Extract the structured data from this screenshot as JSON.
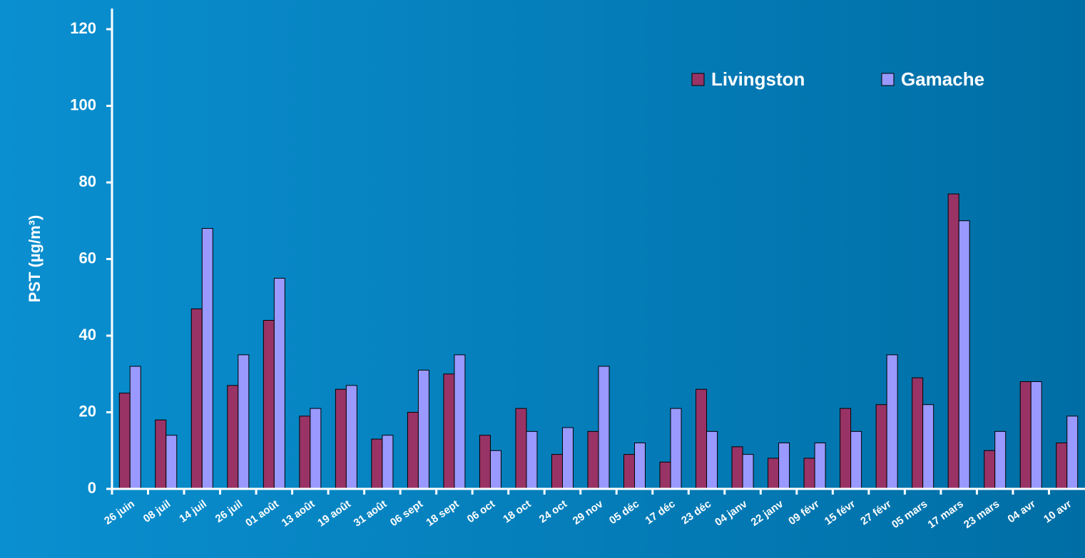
{
  "chart_data": {
    "type": "bar",
    "y_label": "PST (µg/m³)",
    "categories": [
      "26 juin",
      "08 juil",
      "14 juil",
      "26 juil",
      "01 août",
      "13 août",
      "19 août",
      "31 août",
      "06 sept",
      "18 sept",
      "06 oct",
      "18 oct",
      "24 oct",
      "29 nov",
      "05 déc",
      "17 déc",
      "23 déc",
      "04 janv",
      "22 janv",
      "09 févr",
      "15 févr",
      "27 févr",
      "05 mars",
      "17 mars",
      "23 mars",
      "04 avr",
      "10 avr"
    ],
    "series": [
      {
        "name": "Livingston",
        "color": "#993366",
        "values": [
          25,
          18,
          47,
          27,
          44,
          19,
          26,
          13,
          20,
          30,
          14,
          21,
          9,
          15,
          9,
          7,
          26,
          11,
          8,
          8,
          21,
          22,
          29,
          77,
          10,
          28,
          12
        ]
      },
      {
        "name": "Gamache",
        "color": "#9999ff",
        "values": [
          32,
          14,
          68,
          35,
          55,
          21,
          27,
          14,
          31,
          35,
          10,
          15,
          16,
          32,
          12,
          21,
          15,
          9,
          12,
          12,
          15,
          35,
          22,
          70,
          15,
          28,
          19
        ]
      }
    ],
    "ylim": [
      0,
      120
    ],
    "yticks": [
      0,
      20,
      40,
      60,
      80,
      100,
      120
    ],
    "legend": "upper right"
  }
}
